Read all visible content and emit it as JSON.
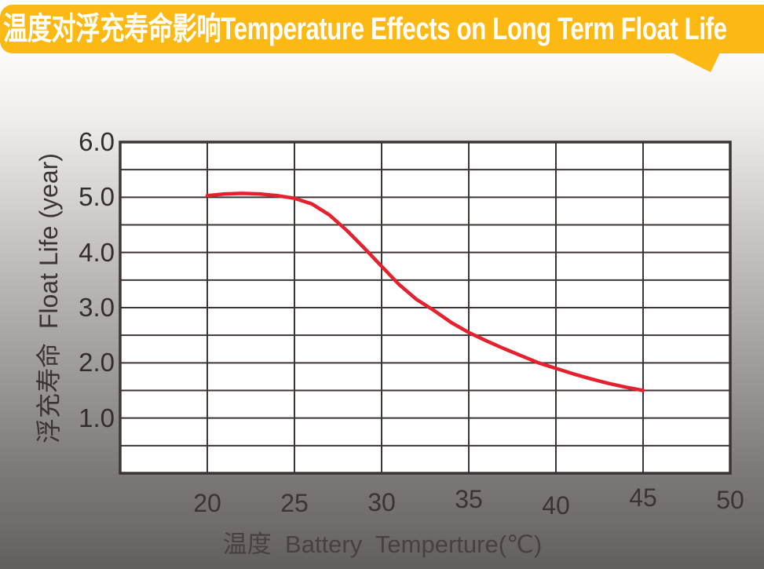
{
  "banner": {
    "title": "温度对浮充寿命影响Temperature Effects on Long Term Float Life",
    "bg_color": "#fcb813",
    "text_color": "#ffffff"
  },
  "chart_data": {
    "type": "line",
    "title": "温度对浮充寿命影响 Temperature Effects on Long Term Float Life",
    "xlabel": "温度  Battery  Temperture(℃)",
    "ylabel": "浮充寿命  Float Life (year)",
    "xlim": [
      15,
      50
    ],
    "ylim": [
      0,
      6
    ],
    "x_grid_step": 5,
    "y_grid_step": 0.5,
    "grid": true,
    "legend_position": "none",
    "plot_bg_color": "#ffffff",
    "grid_color": "#3c3534",
    "x_ticks": [
      {
        "value": 20,
        "label": "20"
      },
      {
        "value": 25,
        "label": "25"
      },
      {
        "value": 30,
        "label": "30"
      },
      {
        "value": 35,
        "label": "35"
      },
      {
        "value": 40,
        "label": "40"
      },
      {
        "value": 45,
        "label": "45"
      },
      {
        "value": 50,
        "label": "50"
      }
    ],
    "y_ticks": [
      {
        "value": 6,
        "label": "6.0"
      },
      {
        "value": 5,
        "label": "5.0"
      },
      {
        "value": 4,
        "label": "4.0"
      },
      {
        "value": 3,
        "label": "3.0"
      },
      {
        "value": 2,
        "label": "2.0"
      },
      {
        "value": 1,
        "label": "1.0"
      }
    ],
    "series": [
      {
        "color": "#e4212e",
        "points": [
          [
            20,
            5.03
          ],
          [
            21,
            5.06
          ],
          [
            22,
            5.07
          ],
          [
            23,
            5.06
          ],
          [
            24,
            5.03
          ],
          [
            25,
            4.98
          ],
          [
            26,
            4.88
          ],
          [
            27,
            4.68
          ],
          [
            28,
            4.4
          ],
          [
            29,
            4.08
          ],
          [
            30,
            3.75
          ],
          [
            31,
            3.42
          ],
          [
            32,
            3.15
          ],
          [
            33,
            2.95
          ],
          [
            34,
            2.73
          ],
          [
            35,
            2.55
          ],
          [
            36,
            2.4
          ],
          [
            37,
            2.26
          ],
          [
            38,
            2.13
          ],
          [
            39,
            2.0
          ],
          [
            40,
            1.9
          ],
          [
            41,
            1.8
          ],
          [
            42,
            1.71
          ],
          [
            43,
            1.63
          ],
          [
            44,
            1.56
          ],
          [
            45,
            1.5
          ]
        ]
      }
    ]
  }
}
